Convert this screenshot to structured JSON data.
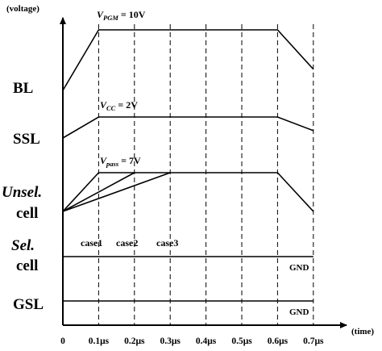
{
  "axes": {
    "y_unit_label": "(voltage)",
    "x_unit_label": "(time)",
    "x_ticks": [
      "0",
      "0.1μs",
      "0.2μs",
      "0.3μs",
      "0.4μs",
      "0.5μs",
      "0.6μs",
      "0.7μs"
    ],
    "x_tick_values": [
      0,
      0.1,
      0.2,
      0.3,
      0.4,
      0.5,
      0.6,
      0.7
    ]
  },
  "signals": [
    {
      "id": "bl",
      "label_main": "BL",
      "label_sub": "",
      "italic": false,
      "annotation": {
        "symbol": "V",
        "subscript": "PGM",
        "value": "= 10V"
      },
      "points": [
        [
          0,
          0
        ],
        [
          0.1,
          1
        ],
        [
          0.6,
          1
        ],
        [
          0.7,
          0.35
        ]
      ]
    },
    {
      "id": "ssl",
      "label_main": "SSL",
      "label_sub": "",
      "italic": false,
      "annotation": {
        "symbol": "V",
        "subscript": "CC",
        "value": "= 2V"
      },
      "points": [
        [
          0,
          0
        ],
        [
          0.1,
          1
        ],
        [
          0.6,
          1
        ],
        [
          0.7,
          0.35
        ]
      ]
    },
    {
      "id": "unsel",
      "label_main": "Unsel.",
      "label_sub": "cell",
      "italic": true,
      "annotation": {
        "symbol": "V",
        "subscript": "pass",
        "value": "= 7V"
      },
      "cases": [
        {
          "name": "case1",
          "points": [
            [
              0,
              0
            ],
            [
              0.1,
              1
            ],
            [
              0.6,
              1
            ],
            [
              0.7,
              0
            ]
          ]
        },
        {
          "name": "case2",
          "points": [
            [
              0,
              0
            ],
            [
              0.2,
              1
            ]
          ]
        },
        {
          "name": "case3",
          "points": [
            [
              0,
              0
            ],
            [
              0.3,
              1
            ]
          ]
        }
      ]
    },
    {
      "id": "sel",
      "label_main": "Sel.",
      "label_sub": "cell",
      "italic": true,
      "end_label": "GND",
      "points": [
        [
          0,
          0
        ],
        [
          0.7,
          0
        ]
      ]
    },
    {
      "id": "gsl",
      "label_main": "GSL",
      "label_sub": "",
      "italic": false,
      "end_label": "GND",
      "points": [
        [
          0,
          0
        ],
        [
          0.7,
          0
        ]
      ]
    }
  ],
  "case_labels": [
    "case1",
    "case2",
    "case3"
  ]
}
